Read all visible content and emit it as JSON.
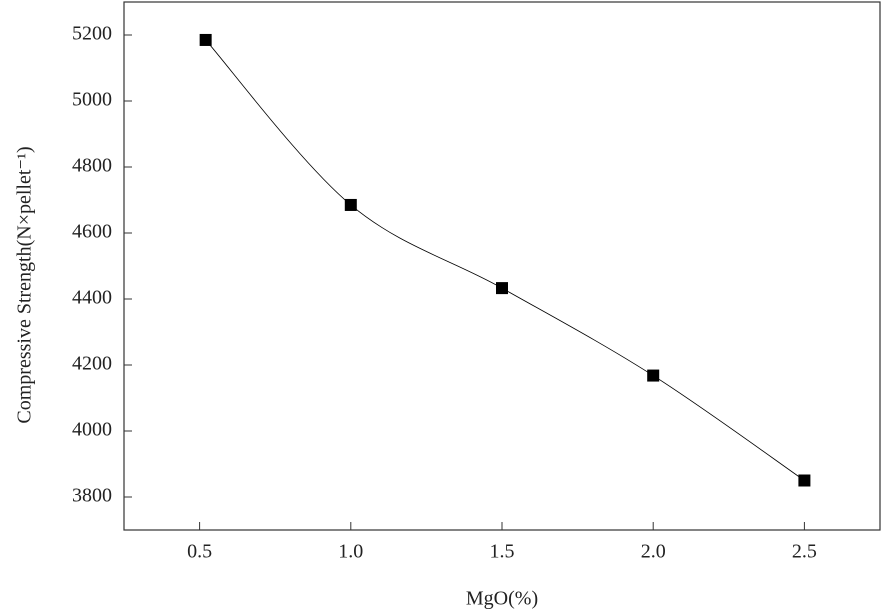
{
  "chart_data": {
    "type": "line",
    "xlabel": "MgO(%)",
    "ylabel": "Compressive Strength(N×pellet⁻¹)",
    "x": [
      0.52,
      1.0,
      1.5,
      2.0,
      2.5
    ],
    "series": [
      {
        "values": [
          5185,
          4685,
          4433,
          4168,
          3850
        ],
        "color": "#000000"
      }
    ],
    "xlim": [
      0.25,
      2.75
    ],
    "xticks": [
      {
        "value": 0.5,
        "label": "0.5"
      },
      {
        "value": 1.0,
        "label": "1.0"
      },
      {
        "value": 1.5,
        "label": "1.5"
      },
      {
        "value": 2.0,
        "label": "2.0"
      },
      {
        "value": 2.5,
        "label": "2.5"
      }
    ],
    "ylim": [
      3700,
      5300
    ],
    "yticks": [
      3800,
      4000,
      4200,
      4400,
      4600,
      4800,
      5000,
      5200
    ],
    "grid": false,
    "marker": "square"
  }
}
